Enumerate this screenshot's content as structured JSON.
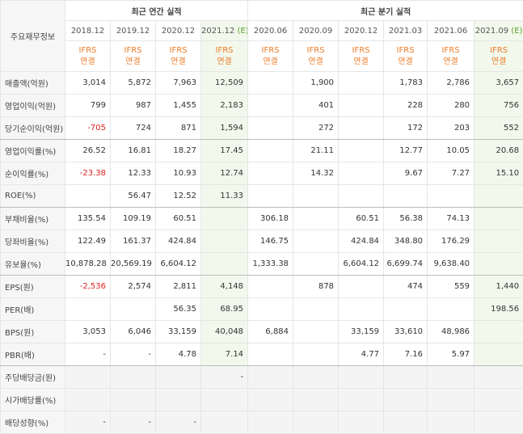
{
  "header": {
    "corner": "주요재무정보",
    "annual_title": "최근 연간 실적",
    "quarter_title": "최근 분기 실적",
    "columns": [
      {
        "date": "2018.12",
        "basis": "IFRS",
        "scope": "연결"
      },
      {
        "date": "2019.12",
        "basis": "IFRS",
        "scope": "연결"
      },
      {
        "date": "2020.12",
        "basis": "IFRS",
        "scope": "연결"
      },
      {
        "date": "2021.12",
        "estimate": "(E)",
        "basis": "IFRS",
        "scope": "연결"
      },
      {
        "date": "2020.06",
        "basis": "IFRS",
        "scope": "연결"
      },
      {
        "date": "2020.09",
        "basis": "IFRS",
        "scope": "연결"
      },
      {
        "date": "2020.12",
        "basis": "IFRS",
        "scope": "연결"
      },
      {
        "date": "2021.03",
        "basis": "IFRS",
        "scope": "연결"
      },
      {
        "date": "2021.06",
        "basis": "IFRS",
        "scope": "연결"
      },
      {
        "date": "2021.09",
        "estimate": "(E)",
        "basis": "IFRS",
        "scope": "연결"
      }
    ]
  },
  "rows": [
    {
      "label": "매출액(억원)",
      "cells": [
        "3,014",
        "5,872",
        "7,963",
        "12,509",
        null,
        "1,900",
        null,
        "1,783",
        "2,786",
        "3,657"
      ]
    },
    {
      "label": "영업이익(억원)",
      "cells": [
        "799",
        "987",
        "1,455",
        "2,183",
        null,
        "401",
        null,
        "228",
        "280",
        "756"
      ]
    },
    {
      "label": "당기순이익(억원)",
      "cells": [
        "-705",
        "724",
        "871",
        "1,594",
        null,
        "272",
        null,
        "172",
        "203",
        "552"
      ]
    },
    {
      "label": "영업이익률(%)",
      "cells": [
        "26.52",
        "16.81",
        "18.27",
        "17.45",
        null,
        "21.11",
        null,
        "12.77",
        "10.05",
        "20.68"
      ]
    },
    {
      "label": "순이익률(%)",
      "cells": [
        "-23.38",
        "12.33",
        "10.93",
        "12.74",
        null,
        "14.32",
        null,
        "9.67",
        "7.27",
        "15.10"
      ]
    },
    {
      "label": "ROE(%)",
      "cells": [
        null,
        "56.47",
        "12.52",
        "11.33",
        null,
        null,
        null,
        null,
        null,
        null
      ]
    },
    {
      "label": "부채비율(%)",
      "cells": [
        "135.54",
        "109.19",
        "60.51",
        null,
        "306.18",
        null,
        "60.51",
        "56.38",
        "74.13",
        null
      ]
    },
    {
      "label": "당좌비율(%)",
      "cells": [
        "122.49",
        "161.37",
        "424.84",
        null,
        "146.75",
        null,
        "424.84",
        "348.80",
        "176.29",
        null
      ]
    },
    {
      "label": "유보율(%)",
      "cells": [
        "10,878.28",
        "20,569.19",
        "6,604.12",
        null,
        "1,333.38",
        null,
        "6,604.12",
        "6,699.74",
        "9,638.40",
        null
      ]
    },
    {
      "label": "EPS(원)",
      "cells": [
        "-2,536",
        "2,574",
        "2,811",
        "4,148",
        null,
        "878",
        null,
        "474",
        "559",
        "1,440"
      ]
    },
    {
      "label": "PER(배)",
      "cells": [
        null,
        null,
        "56.35",
        "68.95",
        null,
        null,
        null,
        null,
        null,
        "198.56"
      ]
    },
    {
      "label": "BPS(원)",
      "cells": [
        "3,053",
        "6,046",
        "33,159",
        "40,048",
        "6,884",
        null,
        "33,159",
        "33,610",
        "48,986",
        null
      ]
    },
    {
      "label": "PBR(배)",
      "cells": [
        "-",
        "-",
        "4.78",
        "7.14",
        null,
        null,
        "4.77",
        "7.16",
        "5.97",
        null
      ]
    },
    {
      "label": "주당배당금(원)",
      "cells": [
        null,
        null,
        null,
        "-",
        null,
        null,
        null,
        null,
        null,
        null
      ]
    },
    {
      "label": "시가배당률(%)",
      "cells": [
        null,
        null,
        null,
        null,
        null,
        null,
        null,
        null,
        null,
        null
      ]
    },
    {
      "label": "배당성향(%)",
      "cells": [
        "-",
        "-",
        "-",
        null,
        null,
        null,
        null,
        null,
        null,
        null
      ]
    }
  ]
}
